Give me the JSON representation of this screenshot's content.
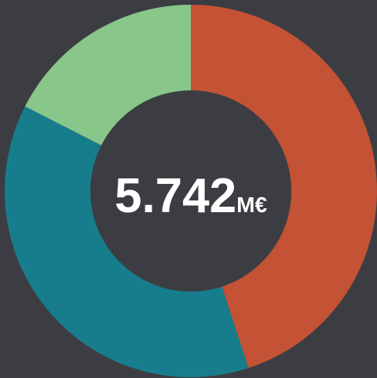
{
  "chart_data": {
    "type": "donut",
    "values": [
      45,
      37.5,
      17.5
    ],
    "colors": [
      "#c45234",
      "#177d8c",
      "#88c68a"
    ],
    "center_text": "5.742",
    "center_unit": "M€"
  }
}
